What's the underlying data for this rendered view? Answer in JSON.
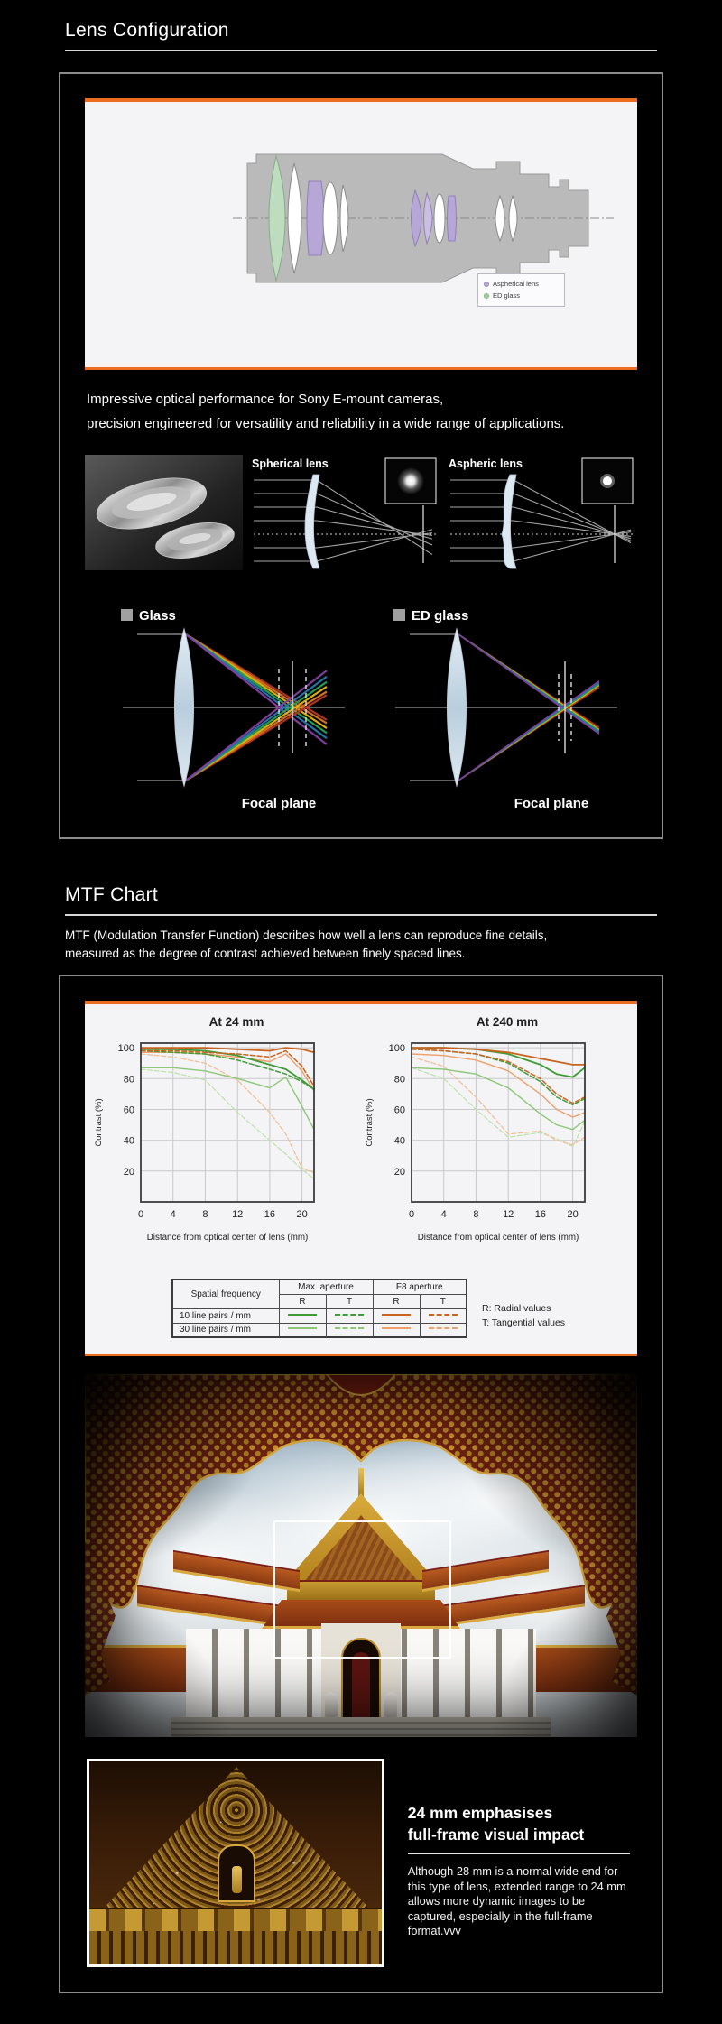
{
  "colors": {
    "accent": "#ed6c1e",
    "panel_border": "#8c8c8c",
    "green_dark": "#3f9b35",
    "green_light": "#8cc878",
    "green_pale": "#bfe3ad",
    "orange_dark": "#c9641f",
    "orange_light": "#eda06c",
    "orange_pale": "#f2c09a",
    "aspherical_purple": "#b7a7d6",
    "ed_green": "#bedcbe"
  },
  "section1": {
    "title": "Lens Configuration",
    "lens_legend": {
      "aspherical": "Aspherical lens",
      "ed_glass": "ED glass"
    },
    "intro": [
      "Impressive optical performance for Sony E-mount cameras,",
      "precision engineered for versatility and reliability in a wide range of applications."
    ],
    "spherical_label": "Spherical lens",
    "aspheric_label": "Aspheric lens",
    "glass": {
      "label": "Glass",
      "focal_plane": "Focal plane"
    },
    "ed": {
      "label": "ED glass",
      "focal_plane": "Focal plane"
    }
  },
  "section2": {
    "title": "MTF Chart",
    "description": [
      "MTF (Modulation Transfer Function) describes how well a lens can reproduce fine details,",
      "measured as the degree of contrast achieved between finely spaced lines."
    ],
    "legend_table": {
      "spatial": "Spatial frequency",
      "max_aperture": "Max. aperture",
      "f8_aperture": "F8 aperture",
      "r": "R",
      "t": "T",
      "rows": [
        {
          "label": "10 line pairs / mm"
        },
        {
          "label": "30 line pairs / mm"
        }
      ],
      "notes": [
        "R: Radial values",
        "T: Tangential values"
      ]
    },
    "feature": {
      "heading": [
        "24 mm emphasises",
        "full-frame visual impact"
      ],
      "body": "Although 28 mm is a normal wide end for this type of lens, extended range to 24 mm allows more dynamic images to be captured, especially in the full-frame format.vvv"
    }
  },
  "chart_data": [
    {
      "type": "line",
      "title": "At 24 mm",
      "xlabel": "Distance from optical center of lens (mm)",
      "ylabel": "Contrast (%)",
      "xlim": [
        0,
        21.5
      ],
      "ylim": [
        0,
        103
      ],
      "xticks": [
        0,
        4,
        8,
        12,
        16,
        20
      ],
      "yticks": [
        20,
        40,
        60,
        80,
        100
      ],
      "grid": true,
      "x": [
        0,
        4,
        8,
        12,
        16,
        18,
        20,
        21.5
      ],
      "series": [
        {
          "name": "30 line pairs/mm Max. aperture T",
          "color": "#bfe3ad",
          "dash": true,
          "width": 1.3,
          "values": [
            86,
            84,
            79,
            58,
            40,
            31,
            21,
            15
          ]
        },
        {
          "name": "30 line pairs/mm F8 aperture T",
          "color": "#f2c09a",
          "dash": true,
          "width": 1.3,
          "values": [
            96,
            94,
            90,
            79,
            58,
            44,
            22,
            19
          ]
        },
        {
          "name": "30 line pairs/mm Max. aperture R",
          "color": "#8cc878",
          "dash": false,
          "width": 1.4,
          "values": [
            87,
            87,
            85,
            80,
            74,
            81,
            62,
            47
          ]
        },
        {
          "name": "30 line pairs/mm F8 aperture R",
          "color": "#eda06c",
          "dash": false,
          "width": 1.4,
          "values": [
            97,
            97,
            96,
            94,
            91,
            96,
            85,
            72
          ]
        },
        {
          "name": "10 line pairs/mm Max. aperture T",
          "color": "#3f9b35",
          "dash": true,
          "width": 1.5,
          "values": [
            98,
            97,
            96,
            92,
            86,
            83,
            78,
            73
          ]
        },
        {
          "name": "10 line pairs/mm Max. aperture R",
          "color": "#3f9b35",
          "dash": false,
          "width": 1.8,
          "values": [
            99,
            99,
            98,
            95,
            89,
            86,
            79,
            73
          ]
        },
        {
          "name": "10 line pairs/mm F8 aperture T",
          "color": "#c9641f",
          "dash": true,
          "width": 1.5,
          "values": [
            98,
            98,
            97,
            96,
            94,
            98,
            88,
            75
          ]
        },
        {
          "name": "10 line pairs/mm F8 aperture R",
          "color": "#c9641f",
          "dash": false,
          "width": 1.8,
          "values": [
            100,
            100,
            100,
            99,
            98,
            100,
            99,
            97
          ]
        }
      ]
    },
    {
      "type": "line",
      "title": "At 240 mm",
      "xlabel": "Distance from optical center of lens (mm)",
      "ylabel": "Contrast (%)",
      "xlim": [
        0,
        21.5
      ],
      "ylim": [
        0,
        103
      ],
      "xticks": [
        0,
        4,
        8,
        12,
        16,
        20
      ],
      "yticks": [
        20,
        40,
        60,
        80,
        100
      ],
      "grid": true,
      "x": [
        0,
        4,
        8,
        12,
        16,
        18,
        20,
        21.5
      ],
      "series": [
        {
          "name": "30 line pairs/mm Max. aperture T",
          "color": "#bfe3ad",
          "dash": true,
          "width": 1.3,
          "values": [
            87,
            80,
            60,
            42,
            45,
            41,
            36,
            52
          ]
        },
        {
          "name": "30 line pairs/mm F8 aperture T",
          "color": "#f2c09a",
          "dash": true,
          "width": 1.3,
          "values": [
            94,
            88,
            68,
            44,
            46,
            40,
            37,
            42
          ]
        },
        {
          "name": "30 line pairs/mm Max. aperture R",
          "color": "#8cc878",
          "dash": false,
          "width": 1.4,
          "values": [
            87,
            86,
            83,
            74,
            57,
            50,
            47,
            53
          ]
        },
        {
          "name": "30 line pairs/mm F8 aperture R",
          "color": "#eda06c",
          "dash": false,
          "width": 1.4,
          "values": [
            96,
            95,
            92,
            85,
            70,
            60,
            55,
            58
          ]
        },
        {
          "name": "10 line pairs/mm Max. aperture T",
          "color": "#3f9b35",
          "dash": true,
          "width": 1.5,
          "values": [
            99,
            98,
            96,
            90,
            78,
            68,
            63,
            67
          ]
        },
        {
          "name": "10 line pairs/mm Max. aperture R",
          "color": "#3f9b35",
          "dash": false,
          "width": 1.8,
          "values": [
            100,
            100,
            99,
            96,
            89,
            83,
            81,
            87
          ]
        },
        {
          "name": "10 line pairs/mm F8 aperture T",
          "color": "#c9641f",
          "dash": true,
          "width": 1.5,
          "values": [
            99,
            98,
            96,
            91,
            80,
            70,
            64,
            68
          ]
        },
        {
          "name": "10 line pairs/mm F8 aperture R",
          "color": "#c9641f",
          "dash": false,
          "width": 1.8,
          "values": [
            100,
            100,
            99,
            97,
            93,
            91,
            89,
            89
          ]
        }
      ]
    }
  ]
}
